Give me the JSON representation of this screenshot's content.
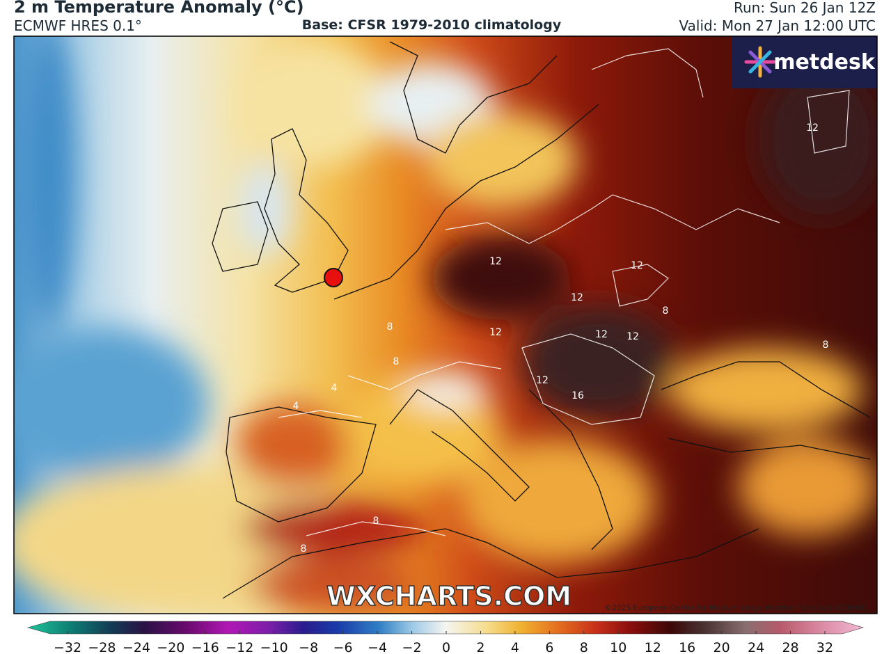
{
  "header": {
    "title": "2 m Temperature Anomaly (°C)",
    "model": "ECMWF HRES 0.1°",
    "base": "Base: CFSR 1979-2010 climatology",
    "run": "Run: Sun 26 Jan 12Z",
    "valid": "Valid: Mon 27 Jan 12:00 UTC"
  },
  "map": {
    "logo": "metdesk",
    "watermark": "WXCHARTS.COM",
    "copyright": "©2025 European Centre for Medium-range Weather Forecasts (ECMWF)",
    "contour_labels": [
      "12",
      "12",
      "12",
      "12",
      "12",
      "12",
      "16",
      "12",
      "8",
      "8",
      "8",
      "8",
      "4",
      "4",
      "8",
      "8",
      "12"
    ]
  },
  "colorbar": {
    "ticks": [
      "−32",
      "−28",
      "−24",
      "−20",
      "−16",
      "−12",
      "−10",
      "−8",
      "−6",
      "−4",
      "−2",
      "0",
      "2",
      "4",
      "6",
      "8",
      "10",
      "12",
      "16",
      "20",
      "24",
      "28",
      "32"
    ]
  }
}
